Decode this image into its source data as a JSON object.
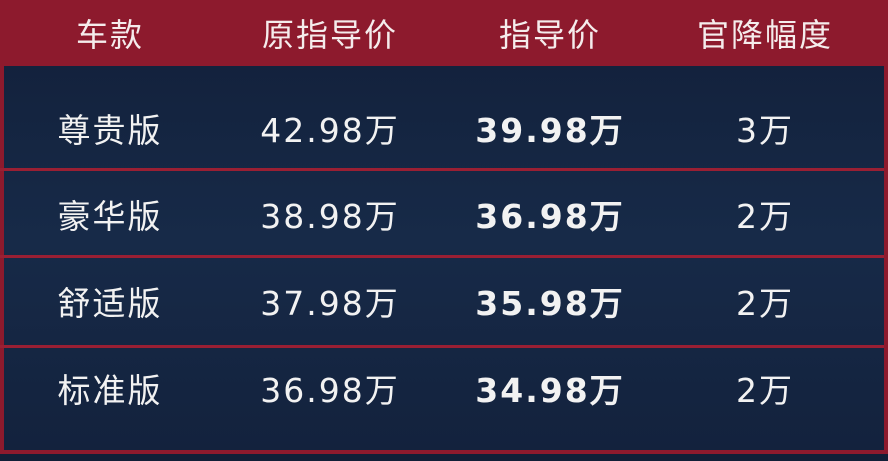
{
  "chart_data": {
    "type": "table",
    "columns": [
      "车款",
      "原指导价",
      "指导价",
      "官降幅度"
    ],
    "rows": [
      [
        "尊贵版",
        "42.98万",
        "39.98万",
        "3万"
      ],
      [
        "豪华版",
        "38.98万",
        "36.98万",
        "2万"
      ],
      [
        "舒适版",
        "37.98万",
        "35.98万",
        "2万"
      ],
      [
        "标准版",
        "36.98万",
        "34.98万",
        "2万"
      ]
    ]
  },
  "colors": {
    "header": "#8d1a2d",
    "body": "#13223d",
    "border": "#9a1f33",
    "text": "#f2f2f2"
  }
}
